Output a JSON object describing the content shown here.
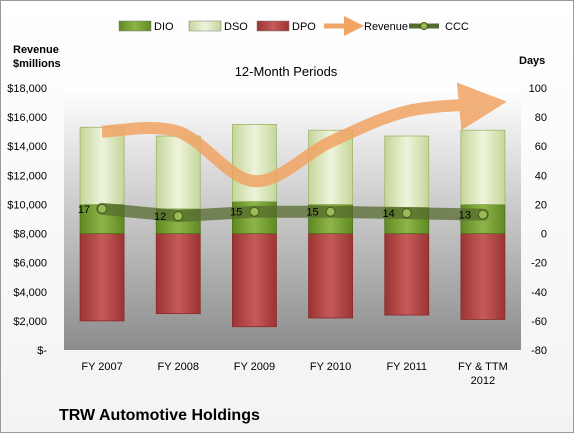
{
  "chart_data": {
    "type": "bar",
    "title": "12-Month Periods",
    "company": "TRW Automotive Holdings",
    "left_axis_label": [
      "Revenue",
      "$millions"
    ],
    "right_axis_label": "Days",
    "categories": [
      "FY 2007",
      "FY 2008",
      "FY 2009",
      "FY 2010",
      "FY 2011",
      "FY & TTM 2012"
    ],
    "left_ticks": [
      "$-",
      "$2,000",
      "$4,000",
      "$6,000",
      "$8,000",
      "$10,000",
      "$12,000",
      "$14,000",
      "$16,000",
      "$18,000"
    ],
    "left_ylim": [
      0,
      18000
    ],
    "right_ticks": [
      "-80",
      "-60",
      "-40",
      "-20",
      "0",
      "20",
      "40",
      "60",
      "80",
      "100"
    ],
    "right_ylim": [
      -80,
      100
    ],
    "series": [
      {
        "name": "DIO",
        "type": "stacked-bar",
        "axis": "right",
        "color": "#77a033",
        "values": [
          20,
          17,
          22,
          20,
          18,
          20
        ]
      },
      {
        "name": "DSO",
        "type": "stacked-bar",
        "axis": "right",
        "color": "#d7e4b4",
        "values": [
          53,
          50,
          53,
          51,
          49,
          51
        ]
      },
      {
        "name": "DPO",
        "type": "stacked-bar-negative",
        "axis": "right",
        "color": "#b84747",
        "values": [
          -60,
          -55,
          -64,
          -58,
          -56,
          -59
        ]
      },
      {
        "name": "Revenue",
        "type": "line",
        "axis": "left",
        "color": "#f2a464",
        "values": [
          15000,
          15000,
          11600,
          14300,
          16400,
          16900
        ]
      },
      {
        "name": "CCC",
        "type": "line",
        "axis": "right",
        "color": "#556b2f",
        "values": [
          17,
          12,
          15,
          15,
          14,
          13
        ]
      }
    ],
    "ccc_labels": [
      "17",
      "12",
      "15",
      "15",
      "14",
      "13"
    ],
    "legend_position": "top",
    "grid": false
  }
}
